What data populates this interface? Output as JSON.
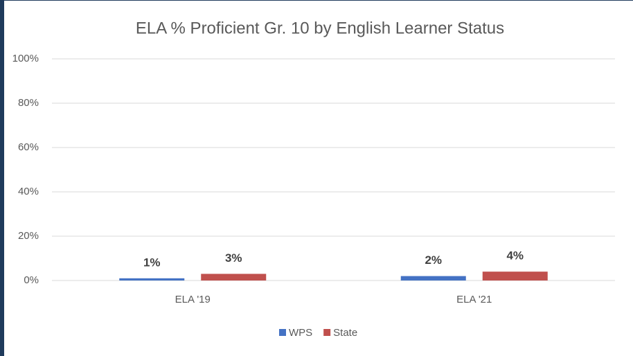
{
  "chart_data": {
    "type": "bar",
    "title": "ELA % Proficient Gr. 10 by English Learner Status",
    "categories": [
      "ELA '19",
      "ELA '21"
    ],
    "series": [
      {
        "name": "WPS",
        "color": "#4472c4",
        "values": [
          1,
          2
        ],
        "value_labels": [
          "1%",
          "2%"
        ]
      },
      {
        "name": "State",
        "color": "#c0504d",
        "values": [
          3,
          4
        ],
        "value_labels": [
          "3%",
          "4%"
        ]
      }
    ],
    "ylim": [
      0,
      100
    ],
    "yticks": [
      {
        "value": 0,
        "label": "0%"
      },
      {
        "value": 20,
        "label": "20%"
      },
      {
        "value": 40,
        "label": "40%"
      },
      {
        "value": 60,
        "label": "60%"
      },
      {
        "value": 80,
        "label": "80%"
      },
      {
        "value": 100,
        "label": "100%"
      }
    ],
    "grid": true,
    "legend": "bottom"
  }
}
